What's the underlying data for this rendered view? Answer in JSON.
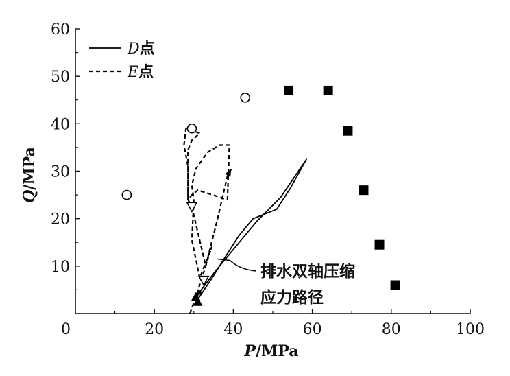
{
  "chart_data": {
    "type": "scatter",
    "title": "",
    "xlabel": "P/MPa",
    "ylabel": "Q/MPa",
    "xlim": [
      0,
      100
    ],
    "ylim": [
      0,
      60
    ],
    "xticks": [
      "0",
      "20",
      "40",
      "60",
      "80",
      "100"
    ],
    "yticks": [
      "10",
      "20",
      "30",
      "40",
      "50",
      "60"
    ],
    "grid": false,
    "legend": {
      "placement": "top-left"
    },
    "series": [
      {
        "name": "D点",
        "style": "solid",
        "marker": "filled-triangle",
        "points": [
          [
            31,
            3
          ],
          [
            35,
            8
          ],
          [
            38,
            12
          ],
          [
            41.5,
            16.5
          ],
          [
            45,
            20
          ],
          [
            48,
            21
          ],
          [
            51,
            22
          ],
          [
            54.5,
            26.5
          ],
          [
            58.5,
            32.5
          ],
          [
            52,
            24.5
          ],
          [
            46,
            19.5
          ],
          [
            41,
            14.5
          ],
          [
            35.5,
            9
          ],
          [
            30.5,
            3.5
          ]
        ]
      },
      {
        "name": "E点",
        "style": "dashed",
        "marker": "open-triangle",
        "points": [
          [
            29,
            0
          ],
          [
            30.5,
            3.5
          ],
          [
            33,
            10
          ],
          [
            34.5,
            14
          ],
          [
            31.5,
            7.5
          ],
          [
            29.5,
            15.5
          ],
          [
            30,
            24
          ],
          [
            29.5,
            27
          ],
          [
            30.5,
            30.5
          ],
          [
            33.5,
            34
          ],
          [
            36.5,
            35.5
          ],
          [
            39,
            35.5
          ],
          [
            38.5,
            24
          ],
          [
            31,
            26
          ],
          [
            29.5,
            25
          ],
          [
            28.5,
            24
          ],
          [
            28.5,
            31
          ],
          [
            27.5,
            35.5
          ],
          [
            28,
            39
          ],
          [
            31.5,
            38
          ],
          [
            29.5,
            36.5
          ],
          [
            28.5,
            34.5
          ],
          [
            28.5,
            24
          ],
          [
            29.5,
            22.5
          ],
          [
            33,
            10
          ],
          [
            36,
            20
          ],
          [
            38.5,
            29
          ],
          [
            39.5,
            30.5
          ]
        ]
      },
      {
        "marker": "open-circle",
        "points": [
          [
            13,
            25
          ],
          [
            29.5,
            39
          ],
          [
            43,
            45.5
          ]
        ]
      },
      {
        "marker": "filled-square",
        "points": [
          [
            54,
            47
          ],
          [
            64,
            47
          ],
          [
            69,
            38.5
          ],
          [
            73,
            26
          ],
          [
            77,
            14.5
          ],
          [
            81,
            6
          ]
        ]
      },
      {
        "marker": "open-triangle",
        "points": [
          [
            29.5,
            22.5
          ],
          [
            32.5,
            7
          ]
        ]
      },
      {
        "marker": "filled-triangle",
        "points": [
          [
            31,
            2.5
          ],
          [
            30.5,
            3.5
          ]
        ]
      }
    ],
    "annotations": [
      {
        "lines": [
          "排水双轴压缩",
          "应力路径"
        ],
        "points_to": [
          36,
          11.5
        ]
      }
    ]
  }
}
